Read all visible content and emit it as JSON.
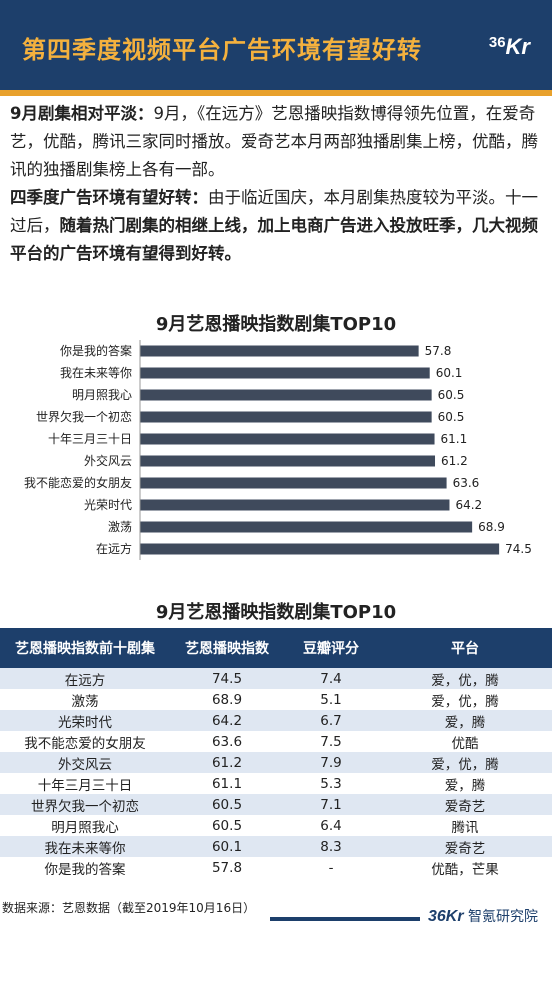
{
  "header": {
    "title": "第四季度视频平台广告环境有望好转",
    "logo_num": "36",
    "logo_letters": "Kr"
  },
  "intro": {
    "p1_bold": "9月剧集相对平淡：",
    "p1_text": "9月，《在远方》艺恩播映指数博得领先位置，在爱奇艺，优酷，腾讯三家同时播放。爱奇艺本月两部独播剧集上榜，优酷，腾讯的独播剧集榜上各有一部。",
    "p2_bold": "四季度广告环境有望好转：",
    "p2_text": "由于临近国庆，本月剧集热度较为平淡。十一过后，",
    "p2_bold2": "随着热门剧集的相继上线，加上电商广告进入投放旺季，几大视频平台的广告环境有望得到好转。"
  },
  "chart_data": {
    "type": "bar",
    "orientation": "horizontal",
    "title": "9月艺恩播映指数剧集TOP10",
    "categories": [
      "你是我的答案",
      "我在未来等你",
      "明月照我心",
      "世界欠我一个初恋",
      "十年三月三十日",
      "外交风云",
      "我不能恋爱的女朋友",
      "光荣时代",
      "激荡",
      "在远方"
    ],
    "values": [
      57.8,
      60.1,
      60.5,
      60.5,
      61.1,
      61.2,
      63.6,
      64.2,
      68.9,
      74.5
    ],
    "value_labels": [
      "57.8",
      "60.1",
      "60.5",
      "60.5",
      "61.1",
      "61.2",
      "63.6",
      "64.2",
      "68.9",
      "74.5"
    ],
    "xlim": [
      0,
      78
    ],
    "bar_color": "#3f4a5c",
    "grid": false
  },
  "table": {
    "title": "9月艺恩播映指数剧集TOP10",
    "headers": [
      "艺恩播映指数前十剧集",
      "艺恩播映指数",
      "豆瓣评分",
      "平台"
    ],
    "rows": [
      [
        "在远方",
        "74.5",
        "7.4",
        "爱，优，腾"
      ],
      [
        "激荡",
        "68.9",
        "5.1",
        "爱，优，腾"
      ],
      [
        "光荣时代",
        "64.2",
        "6.7",
        "爱，腾"
      ],
      [
        "我不能恋爱的女朋友",
        "63.6",
        "7.5",
        "优酷"
      ],
      [
        "外交风云",
        "61.2",
        "7.9",
        "爱，优，腾"
      ],
      [
        "十年三月三十日",
        "61.1",
        "5.3",
        "爱，腾"
      ],
      [
        "世界欠我一个初恋",
        "60.5",
        "7.1",
        "爱奇艺"
      ],
      [
        "明月照我心",
        "60.5",
        "6.4",
        "腾讯"
      ],
      [
        "我在未来等你",
        "60.1",
        "8.3",
        "爱奇艺"
      ],
      [
        "你是我的答案",
        "57.8",
        "-",
        "优酷，芒果"
      ]
    ]
  },
  "footer": {
    "source": "数据来源：艺恩数据（截至2019年10月16日）",
    "logo_big": "36Kr",
    "logo_text": "智氪研究院"
  },
  "colors": {
    "navy": "#1d3f6b",
    "accent": "#f4b13e",
    "row_stripe": "#dfe7f2"
  }
}
